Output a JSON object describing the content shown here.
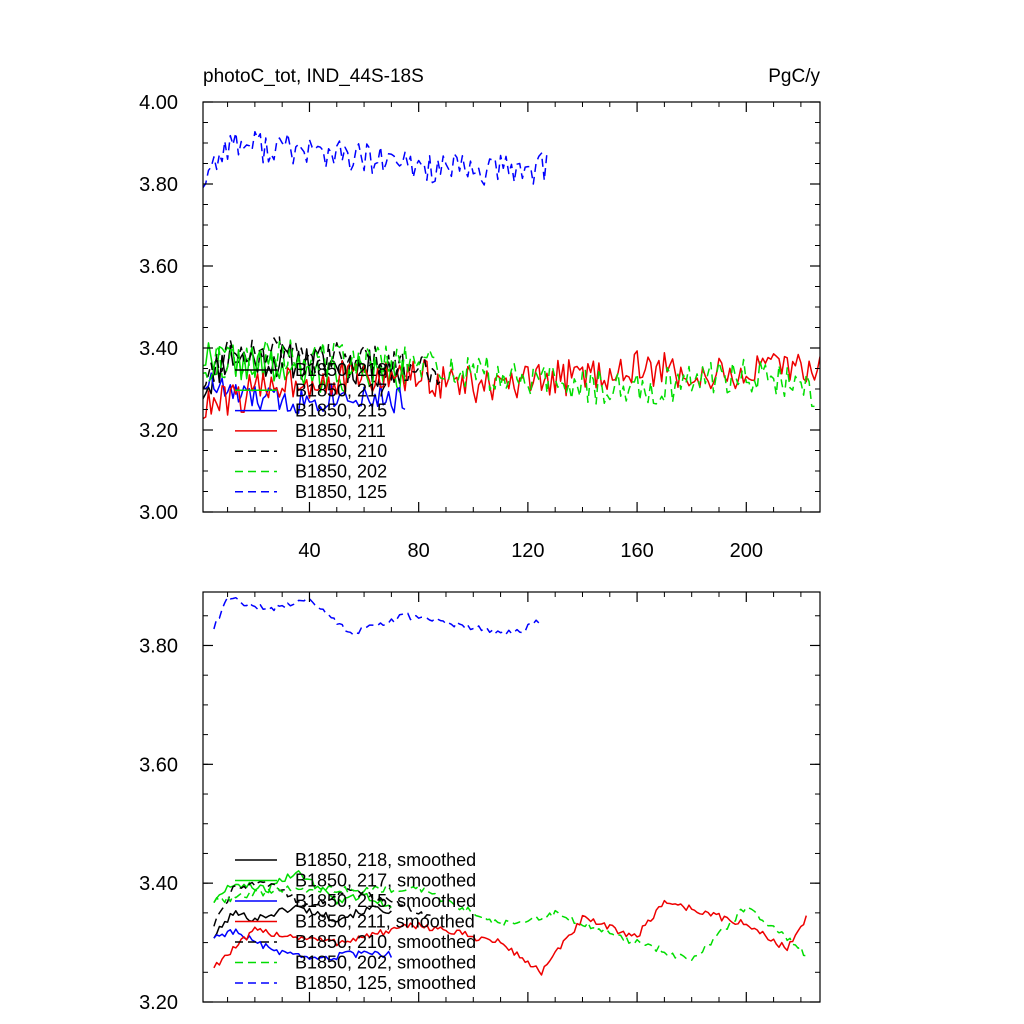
{
  "title": "photoC_tot, IND_44S-18S",
  "units": "PgC/y",
  "colors": {
    "black": "#000000",
    "green": "#00dd00",
    "blue": "#0000ff",
    "red": "#ee0000"
  },
  "chart_data": [
    {
      "type": "line",
      "xlim": [
        1,
        227
      ],
      "ylim": [
        3.0,
        4.0
      ],
      "xticks": [
        40,
        80,
        120,
        160,
        200
      ],
      "xtick_labels": [
        "40",
        "80",
        "120",
        "160",
        "200"
      ],
      "yticks": [
        3.0,
        3.2,
        3.4,
        3.6,
        3.8,
        4.0
      ],
      "ytick_labels": [
        "3.00",
        "3.20",
        "3.40",
        "3.60",
        "3.80",
        "4.00"
      ],
      "series": [
        {
          "name": "B1850, 218",
          "label": "B1850, 218",
          "color": "#000000",
          "dash": false,
          "n": 75,
          "mean": 3.36,
          "noise": 0.045,
          "seed": 11,
          "anchors": [
            [
              1,
              3.3
            ],
            [
              10,
              3.38
            ],
            [
              30,
              3.37
            ],
            [
              50,
              3.36
            ],
            [
              75,
              3.34
            ]
          ]
        },
        {
          "name": "B1850, 217",
          "label": "B1850, 217",
          "color": "#00dd00",
          "dash": false,
          "n": 75,
          "mean": 3.34,
          "noise": 0.045,
          "seed": 22,
          "anchors": [
            [
              1,
              3.38
            ],
            [
              20,
              3.36
            ],
            [
              40,
              3.33
            ],
            [
              60,
              3.34
            ],
            [
              75,
              3.33
            ]
          ]
        },
        {
          "name": "B1850, 215",
          "label": "B1850, 215",
          "color": "#0000ff",
          "dash": false,
          "n": 75,
          "mean": 3.29,
          "noise": 0.035,
          "seed": 33,
          "anchors": [
            [
              1,
              3.32
            ],
            [
              15,
              3.28
            ],
            [
              35,
              3.27
            ],
            [
              55,
              3.29
            ],
            [
              75,
              3.27
            ]
          ]
        },
        {
          "name": "B1850, 211",
          "label": "B1850, 211",
          "color": "#ee0000",
          "dash": false,
          "n": 227,
          "mean": 3.32,
          "noise": 0.045,
          "seed": 44,
          "anchors": [
            [
              1,
              3.25
            ],
            [
              30,
              3.32
            ],
            [
              80,
              3.33
            ],
            [
              110,
              3.3
            ],
            [
              135,
              3.33
            ],
            [
              160,
              3.35
            ],
            [
              190,
              3.33
            ],
            [
              227,
              3.36
            ]
          ]
        },
        {
          "name": "B1850, 210",
          "label": "B1850, 210",
          "color": "#000000",
          "dash": true,
          "n": 88,
          "mean": 3.37,
          "noise": 0.04,
          "seed": 55,
          "anchors": [
            [
              1,
              3.32
            ],
            [
              10,
              3.4
            ],
            [
              40,
              3.38
            ],
            [
              70,
              3.36
            ],
            [
              88,
              3.35
            ]
          ]
        },
        {
          "name": "B1850, 202",
          "label": "B1850, 202",
          "color": "#00dd00",
          "dash": true,
          "n": 225,
          "mean": 3.33,
          "noise": 0.045,
          "seed": 66,
          "anchors": [
            [
              1,
              3.36
            ],
            [
              30,
              3.38
            ],
            [
              80,
              3.36
            ],
            [
              120,
              3.32
            ],
            [
              160,
              3.3
            ],
            [
              200,
              3.34
            ],
            [
              225,
              3.3
            ]
          ]
        },
        {
          "name": "B1850, 125",
          "label": "B1850, 125",
          "color": "#0000ff",
          "dash": true,
          "n": 127,
          "mean": 3.85,
          "noise": 0.04,
          "seed": 77,
          "anchors": [
            [
              1,
              3.81
            ],
            [
              10,
              3.9
            ],
            [
              40,
              3.88
            ],
            [
              70,
              3.85
            ],
            [
              100,
              3.83
            ],
            [
              127,
              3.84
            ]
          ]
        }
      ]
    },
    {
      "type": "line",
      "xlim": [
        1,
        227
      ],
      "ylim": [
        3.2,
        3.89
      ],
      "xticks": [
        40,
        80,
        120,
        160,
        200
      ],
      "yticks": [
        3.2,
        3.4,
        3.6,
        3.8
      ],
      "ytick_labels": [
        "3.20",
        "3.40",
        "3.60",
        "3.80"
      ],
      "series": [
        {
          "name": "B1850, 218, smoothed",
          "label": "B1850, 218, smoothed",
          "color": "#000000",
          "dash": false,
          "n": 70,
          "noise": 0.006,
          "seed": 101,
          "anchors": [
            [
              5,
              3.31
            ],
            [
              12,
              3.35
            ],
            [
              20,
              3.34
            ],
            [
              35,
              3.36
            ],
            [
              50,
              3.34
            ],
            [
              65,
              3.36
            ],
            [
              70,
              3.35
            ]
          ]
        },
        {
          "name": "B1850, 217, smoothed",
          "label": "B1850, 217, smoothed",
          "color": "#00dd00",
          "dash": false,
          "n": 70,
          "noise": 0.006,
          "seed": 102,
          "anchors": [
            [
              5,
              3.37
            ],
            [
              12,
              3.4
            ],
            [
              25,
              3.39
            ],
            [
              35,
              3.42
            ],
            [
              50,
              3.37
            ],
            [
              60,
              3.38
            ],
            [
              70,
              3.36
            ]
          ]
        },
        {
          "name": "B1850, 215, smoothed",
          "label": "B1850, 215, smoothed",
          "color": "#0000ff",
          "dash": false,
          "n": 70,
          "noise": 0.006,
          "seed": 103,
          "anchors": [
            [
              5,
              3.31
            ],
            [
              12,
              3.32
            ],
            [
              25,
              3.29
            ],
            [
              40,
              3.27
            ],
            [
              55,
              3.28
            ],
            [
              70,
              3.28
            ]
          ]
        },
        {
          "name": "B1850, 211, smoothed",
          "label": "B1850, 211, smoothed",
          "color": "#ee0000",
          "dash": false,
          "n": 222,
          "noise": 0.006,
          "seed": 104,
          "anchors": [
            [
              5,
              3.26
            ],
            [
              20,
              3.32
            ],
            [
              50,
              3.3
            ],
            [
              80,
              3.33
            ],
            [
              110,
              3.3
            ],
            [
              125,
              3.25
            ],
            [
              140,
              3.34
            ],
            [
              160,
              3.31
            ],
            [
              170,
              3.37
            ],
            [
              200,
              3.33
            ],
            [
              215,
              3.29
            ],
            [
              222,
              3.34
            ]
          ]
        },
        {
          "name": "B1850, 210, smoothed",
          "label": "B1850, 210, smoothed",
          "color": "#000000",
          "dash": true,
          "n": 85,
          "noise": 0.006,
          "seed": 105,
          "anchors": [
            [
              5,
              3.33
            ],
            [
              12,
              3.39
            ],
            [
              25,
              3.4
            ],
            [
              40,
              3.36
            ],
            [
              55,
              3.39
            ],
            [
              70,
              3.37
            ],
            [
              85,
              3.34
            ]
          ]
        },
        {
          "name": "B1850, 202, smoothed",
          "label": "B1850, 202, smoothed",
          "color": "#00dd00",
          "dash": true,
          "n": 222,
          "noise": 0.006,
          "seed": 106,
          "anchors": [
            [
              5,
              3.37
            ],
            [
              30,
              3.39
            ],
            [
              80,
              3.39
            ],
            [
              110,
              3.33
            ],
            [
              130,
              3.35
            ],
            [
              160,
              3.3
            ],
            [
              180,
              3.27
            ],
            [
              200,
              3.36
            ],
            [
              222,
              3.28
            ]
          ]
        },
        {
          "name": "B1850, 125, smoothed",
          "label": "B1850, 125, smoothed",
          "color": "#0000ff",
          "dash": true,
          "n": 124,
          "noise": 0.005,
          "seed": 107,
          "anchors": [
            [
              5,
              3.83
            ],
            [
              10,
              3.88
            ],
            [
              25,
              3.86
            ],
            [
              40,
              3.88
            ],
            [
              55,
              3.82
            ],
            [
              75,
              3.85
            ],
            [
              100,
              3.83
            ],
            [
              115,
              3.82
            ],
            [
              124,
              3.84
            ]
          ]
        }
      ]
    }
  ]
}
